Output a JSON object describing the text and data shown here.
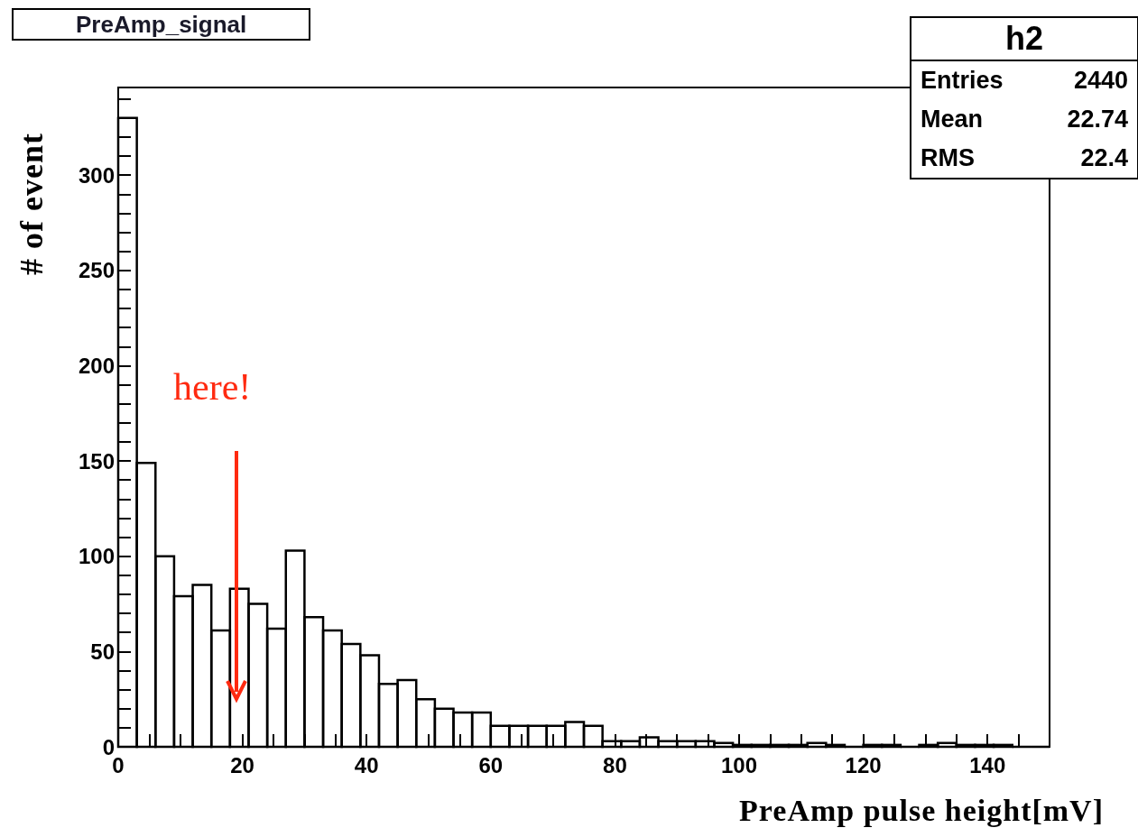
{
  "chart_data": {
    "type": "histogram",
    "title": "PreAmp_signal",
    "xlabel": "PreAmp pulse height[mV]",
    "ylabel": "# of event",
    "bins": [
      0,
      3,
      6,
      9,
      12,
      15,
      18,
      21,
      24,
      27,
      30,
      33,
      36,
      39,
      42,
      45,
      48,
      51,
      54,
      57,
      60,
      63,
      66,
      69,
      72,
      75,
      78,
      81,
      84,
      87,
      90,
      93,
      96,
      99,
      102,
      105,
      108,
      111,
      114,
      117,
      120,
      123,
      126,
      129,
      132,
      135,
      138,
      141,
      144,
      147,
      150
    ],
    "values": [
      330,
      149,
      100,
      79,
      85,
      61,
      83,
      75,
      62,
      103,
      68,
      61,
      54,
      48,
      33,
      35,
      25,
      20,
      18,
      18,
      11,
      11,
      11,
      11,
      13,
      11,
      3,
      3,
      5,
      3,
      3,
      3,
      2,
      1,
      1,
      1,
      1,
      2,
      1,
      0,
      1,
      1,
      0,
      1,
      2,
      1,
      1,
      1,
      0,
      0
    ],
    "color": "#000000",
    "xlim": [
      0,
      150
    ],
    "xticks": [
      0,
      {
        "value": 5,
        "label": null
      },
      {
        "value": 10,
        "label": null
      },
      {
        "value": 15,
        "label": null
      },
      20,
      {
        "value": 25,
        "label": null
      },
      {
        "value": 30,
        "label": null
      },
      {
        "value": 35,
        "label": null
      },
      40,
      {
        "value": 45,
        "label": null
      },
      {
        "value": 50,
        "label": null
      },
      {
        "value": 55,
        "label": null
      },
      60,
      {
        "value": 65,
        "label": null
      },
      {
        "value": 70,
        "label": null
      },
      {
        "value": 75,
        "label": null
      },
      80,
      {
        "value": 85,
        "label": null
      },
      {
        "value": 90,
        "label": null
      },
      {
        "value": 95,
        "label": null
      },
      100,
      {
        "value": 105,
        "label": null
      },
      {
        "value": 110,
        "label": null
      },
      {
        "value": 115,
        "label": null
      },
      120,
      {
        "value": 125,
        "label": null
      },
      {
        "value": 130,
        "label": null
      },
      {
        "value": 135,
        "label": null
      },
      140,
      {
        "value": 145,
        "label": null
      }
    ],
    "ylim": [
      0,
      346
    ],
    "yticks": [
      0,
      {
        "value": 10,
        "label": null
      },
      {
        "value": 20,
        "label": null
      },
      {
        "value": 30,
        "label": null
      },
      {
        "value": 40,
        "label": null
      },
      50,
      {
        "value": 60,
        "label": null
      },
      {
        "value": 70,
        "label": null
      },
      {
        "value": 80,
        "label": null
      },
      {
        "value": 90,
        "label": null
      },
      100,
      {
        "value": 110,
        "label": null
      },
      {
        "value": 120,
        "label": null
      },
      {
        "value": 130,
        "label": null
      },
      {
        "value": 140,
        "label": null
      },
      150,
      {
        "value": 160,
        "label": null
      },
      {
        "value": 170,
        "label": null
      },
      {
        "value": 180,
        "label": null
      },
      {
        "value": 190,
        "label": null
      },
      200,
      {
        "value": 210,
        "label": null
      },
      {
        "value": 220,
        "label": null
      },
      {
        "value": 230,
        "label": null
      },
      {
        "value": 240,
        "label": null
      },
      250,
      {
        "value": 260,
        "label": null
      },
      {
        "value": 270,
        "label": null
      },
      {
        "value": 280,
        "label": null
      },
      {
        "value": 290,
        "label": null
      },
      300,
      {
        "value": 310,
        "label": null
      },
      {
        "value": 320,
        "label": null
      },
      {
        "value": 330,
        "label": null
      },
      {
        "value": 340,
        "label": null
      }
    ],
    "annotations": [
      "here!",
      "h2",
      "Entries",
      "2440",
      "Mean",
      "22.74",
      "RMS",
      "22.4"
    ]
  }
}
